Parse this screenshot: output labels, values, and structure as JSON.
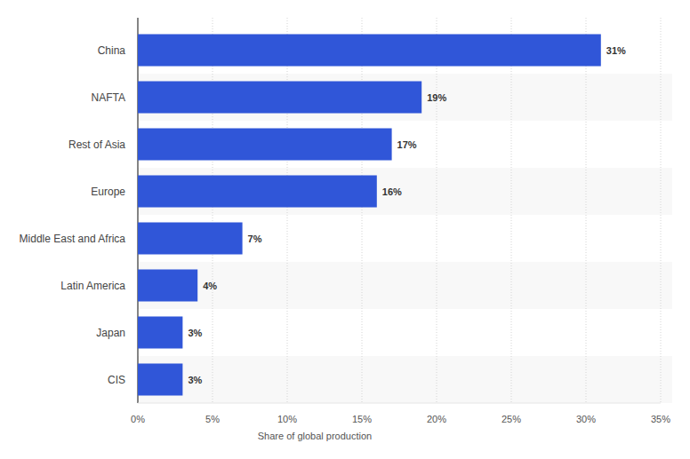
{
  "chart_data": {
    "type": "bar",
    "orientation": "horizontal",
    "categories": [
      "China",
      "NAFTA",
      "Rest of Asia",
      "Europe",
      "Middle East and Africa",
      "Latin America",
      "Japan",
      "CIS"
    ],
    "values": [
      31,
      19,
      17,
      16,
      7,
      4,
      3,
      3
    ],
    "value_labels": [
      "31%",
      "19%",
      "17%",
      "16%",
      "7%",
      "4%",
      "3%",
      "3%"
    ],
    "color": "#3056d8",
    "xlim": [
      0,
      35
    ],
    "xticks": [
      {
        "value": 0,
        "label": "0%"
      },
      {
        "value": 5,
        "label": "5%"
      },
      {
        "value": 10,
        "label": "10%"
      },
      {
        "value": 15,
        "label": "15%"
      },
      {
        "value": 20,
        "label": "20%"
      },
      {
        "value": 25,
        "label": "25%"
      },
      {
        "value": 30,
        "label": "30%"
      },
      {
        "value": 35,
        "label": "35%"
      }
    ],
    "xlabel": "Share of global production",
    "grid": true,
    "data_labels": true
  }
}
